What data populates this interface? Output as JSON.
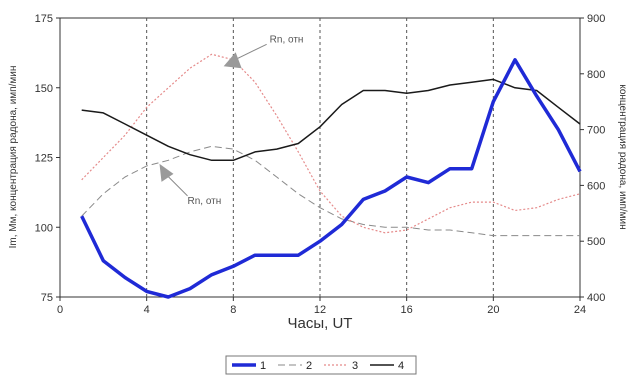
{
  "chart_data": {
    "type": "line",
    "xlabel": "Часы, UT",
    "ylabel_left": "Im, Мм, концентрация радона, имп/мин",
    "ylabel_right": "концентрация радона, имп/мин",
    "x_ticks": [
      0,
      4,
      8,
      12,
      16,
      20,
      24
    ],
    "xlim": [
      0,
      24
    ],
    "y_left_ticks": [
      75,
      100,
      125,
      150,
      175
    ],
    "y_left_lim": [
      75,
      175
    ],
    "y_right_ticks": [
      400,
      500,
      600,
      700,
      800,
      900
    ],
    "y_right_lim": [
      400,
      900
    ],
    "grid": "vertical dashed at x ticks",
    "legend_placement": "bottom-center",
    "colors": {
      "s1": "#1f2ad6",
      "s2": "#8a8a8a",
      "s3": "#e58a8a",
      "s4": "#1a1a1a"
    },
    "annotations": [
      {
        "text": "Rn, отн",
        "target_x": 7,
        "target_series": "3"
      },
      {
        "text": "Rn, отн",
        "target_x": 4.5,
        "target_series": "2"
      }
    ],
    "series": [
      {
        "name": "1",
        "axis": "left",
        "style": "solid-thick",
        "x": [
          1,
          2,
          3,
          4,
          5,
          6,
          7,
          8,
          9,
          10,
          11,
          12,
          13,
          14,
          15,
          16,
          17,
          18,
          19,
          20,
          21,
          22,
          23,
          24
        ],
        "values": [
          104,
          88,
          82,
          77,
          75,
          78,
          83,
          86,
          90,
          90,
          90,
          95,
          101,
          110,
          113,
          118,
          116,
          121,
          121,
          145,
          160,
          147,
          135,
          120
        ]
      },
      {
        "name": "2",
        "axis": "left",
        "style": "dashed",
        "x": [
          1,
          2,
          3,
          4,
          5,
          6,
          7,
          8,
          9,
          10,
          11,
          12,
          13,
          14,
          15,
          16,
          17,
          18,
          19,
          20,
          21,
          22,
          23,
          24
        ],
        "values": [
          104,
          112,
          118,
          122,
          124,
          127,
          129,
          128,
          124,
          118,
          112,
          107,
          103,
          101,
          100,
          100,
          99,
          99,
          98,
          97,
          97,
          97,
          97,
          97
        ]
      },
      {
        "name": "3",
        "axis": "left",
        "style": "dotted",
        "x": [
          1,
          2,
          3,
          4,
          5,
          6,
          7,
          8,
          9,
          10,
          11,
          12,
          13,
          14,
          15,
          16,
          17,
          18,
          19,
          20,
          21,
          22,
          23,
          24
        ],
        "values": [
          117,
          125,
          133,
          143,
          150,
          157,
          162,
          160,
          152,
          140,
          127,
          113,
          104,
          100,
          98,
          99,
          103,
          107,
          109,
          109,
          106,
          107,
          110,
          112
        ]
      },
      {
        "name": "4",
        "axis": "left",
        "style": "solid",
        "x": [
          1,
          2,
          3,
          4,
          5,
          6,
          7,
          8,
          9,
          10,
          11,
          12,
          13,
          14,
          15,
          16,
          17,
          18,
          19,
          20,
          21,
          22,
          23,
          24
        ],
        "values": [
          142,
          141,
          137,
          133,
          129,
          126,
          124,
          124,
          127,
          128,
          130,
          136,
          144,
          149,
          149,
          148,
          149,
          151,
          152,
          153,
          150,
          149,
          143,
          137
        ]
      }
    ]
  }
}
